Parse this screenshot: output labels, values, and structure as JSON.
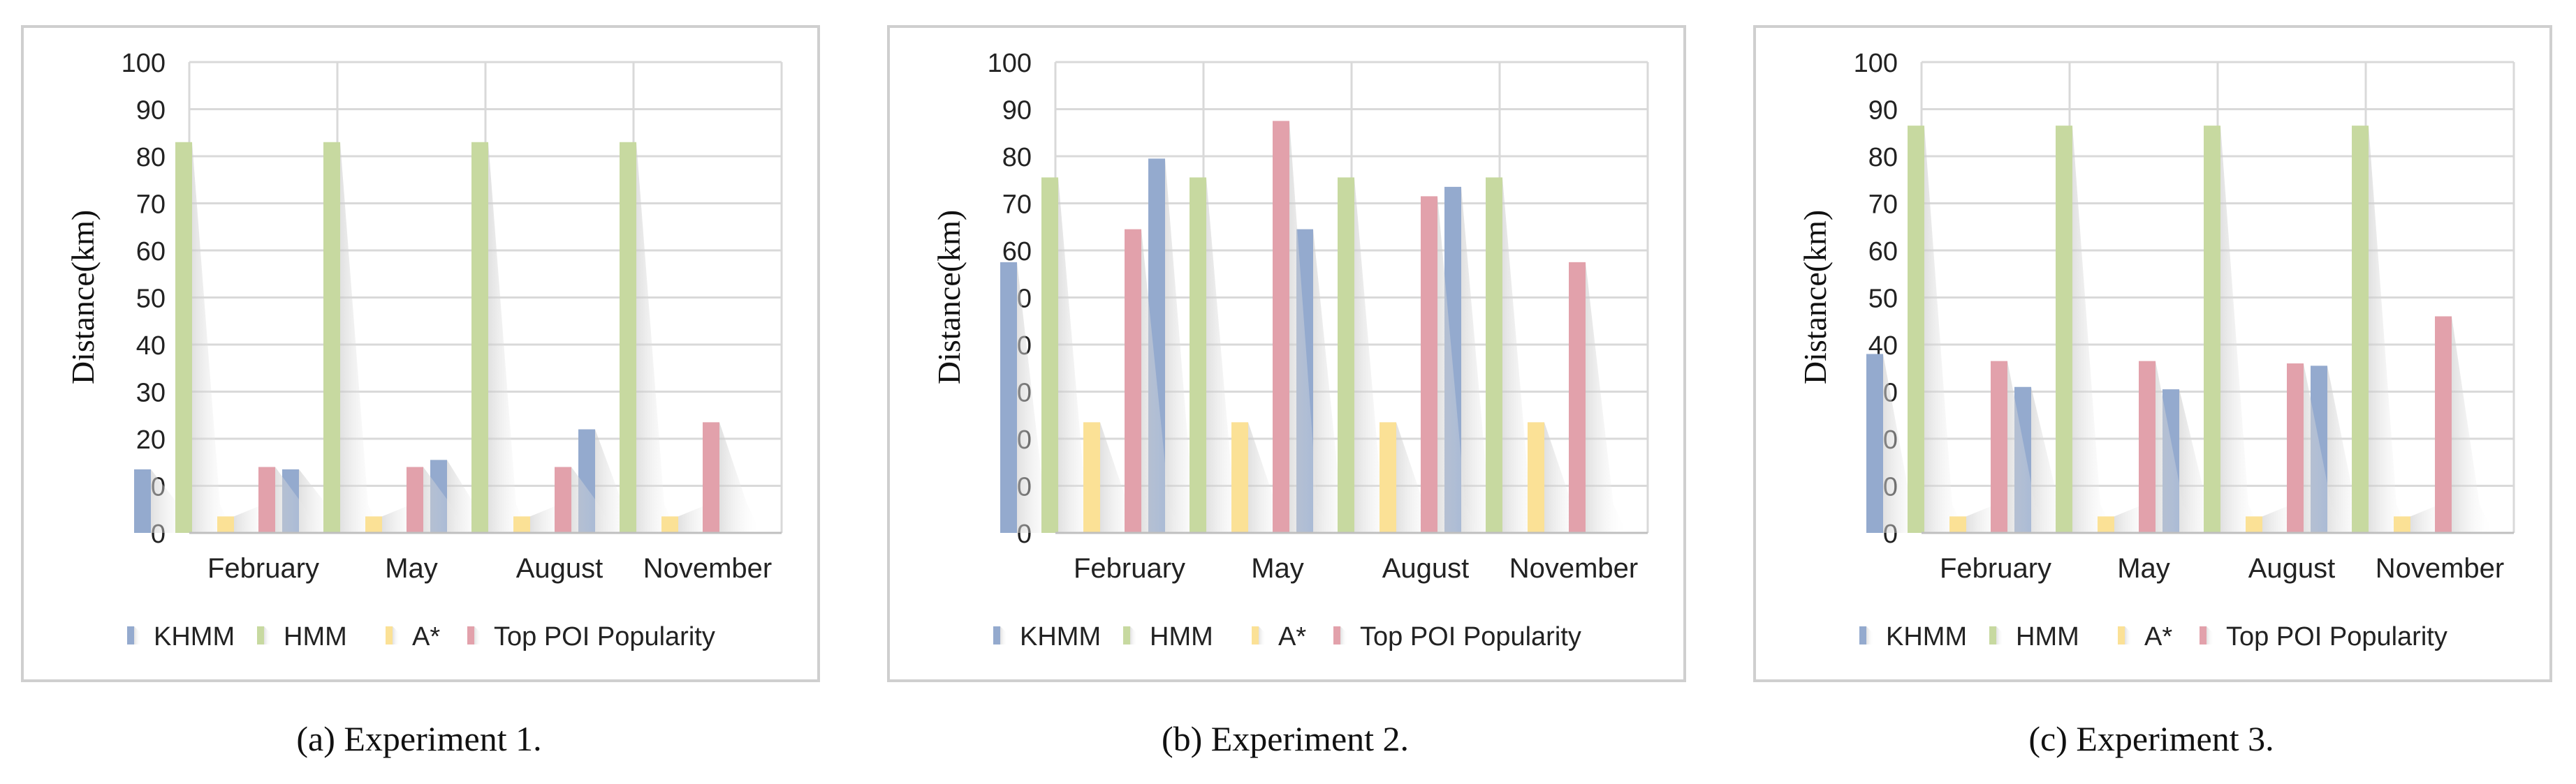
{
  "colors": {
    "KHMM": "#94aace",
    "HMM": "#c7d9a0",
    "A*": "#fbe196",
    "Top POI Popularity": "#e2a1ab",
    "grid": "#d9d9d9",
    "axis": "#bfbfbf",
    "frame": "#cfcfcf"
  },
  "chart_data": [
    {
      "type": "bar",
      "caption": "(a) Experiment 1.",
      "categories": [
        "February",
        "May",
        "August",
        "November"
      ],
      "ylabel": "Distance(km)",
      "xlabel": "",
      "ylim": [
        0,
        100
      ],
      "yticks": [
        "0",
        "10",
        "20",
        "30",
        "40",
        "50",
        "60",
        "70",
        "80",
        "90",
        "100"
      ],
      "grid": true,
      "legend_position": "bottom",
      "series": [
        {
          "name": "KHMM",
          "values": [
            13.5,
            13.5,
            15.5,
            22
          ]
        },
        {
          "name": "HMM",
          "values": [
            83,
            83,
            83,
            83
          ]
        },
        {
          "name": "A*",
          "values": [
            3.5,
            3.5,
            3.5,
            3.5
          ]
        },
        {
          "name": "Top POI Popularity",
          "values": [
            14,
            14,
            14,
            23.5
          ]
        }
      ]
    },
    {
      "type": "bar",
      "caption": "(b) Experiment 2.",
      "categories": [
        "February",
        "May",
        "August",
        "November"
      ],
      "ylabel": "Distance(km)",
      "xlabel": "",
      "ylim": [
        0,
        100
      ],
      "yticks": [
        "0",
        "10",
        "20",
        "30",
        "40",
        "50",
        "60",
        "70",
        "80",
        "90",
        "100"
      ],
      "grid": true,
      "legend_position": "bottom",
      "series": [
        {
          "name": "KHMM",
          "values": [
            57.5,
            79.5,
            64.5,
            73.5
          ]
        },
        {
          "name": "HMM",
          "values": [
            75.5,
            75.5,
            75.5,
            75.5
          ]
        },
        {
          "name": "A*",
          "values": [
            23.5,
            23.5,
            23.5,
            23.5
          ]
        },
        {
          "name": "Top POI Popularity",
          "values": [
            64.5,
            87.5,
            71.5,
            57.5
          ]
        }
      ]
    },
    {
      "type": "bar",
      "caption": "(c) Experiment 3.",
      "categories": [
        "February",
        "May",
        "August",
        "November"
      ],
      "ylabel": "Distance(km)",
      "xlabel": "",
      "ylim": [
        0,
        100
      ],
      "yticks": [
        "0",
        "10",
        "20",
        "30",
        "40",
        "50",
        "60",
        "70",
        "80",
        "90",
        "100"
      ],
      "grid": true,
      "legend_position": "bottom",
      "series": [
        {
          "name": "KHMM",
          "values": [
            38,
            31,
            30.5,
            35.5
          ]
        },
        {
          "name": "HMM",
          "values": [
            86.5,
            86.5,
            86.5,
            86.5
          ]
        },
        {
          "name": "A*",
          "values": [
            3.5,
            3.5,
            3.5,
            3.5
          ]
        },
        {
          "name": "Top POI Popularity",
          "values": [
            36.5,
            36.5,
            36,
            46
          ]
        }
      ]
    }
  ]
}
